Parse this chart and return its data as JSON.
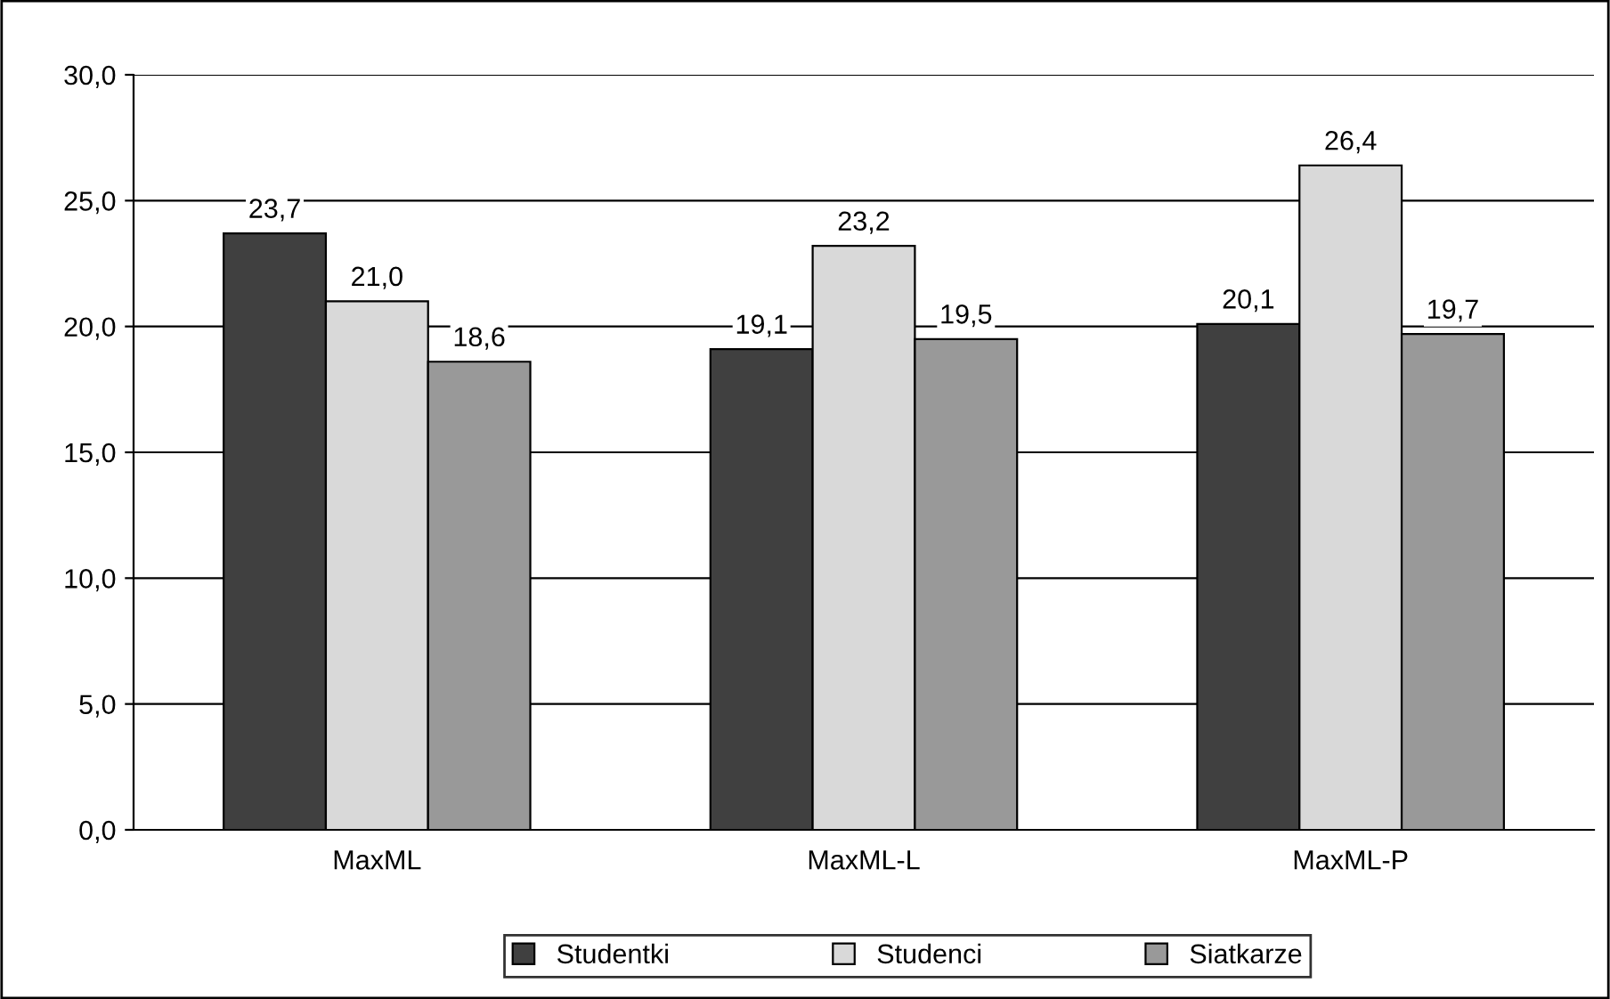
{
  "chart_data": {
    "type": "bar",
    "categories": [
      "MaxML",
      "MaxML-L",
      "MaxML-P"
    ],
    "series": [
      {
        "name": "Studentki",
        "color": "#404040",
        "values": [
          23.7,
          19.1,
          20.1
        ],
        "value_labels": [
          "23,7",
          "19,1",
          "20,1"
        ]
      },
      {
        "name": "Studenci",
        "color": "#d9d9d9",
        "values": [
          21.0,
          23.2,
          26.4
        ],
        "value_labels": [
          "21,0",
          "23,2",
          "26,4"
        ]
      },
      {
        "name": "Siatkarze",
        "color": "#999999",
        "values": [
          18.6,
          19.5,
          19.7
        ],
        "value_labels": [
          "18,6",
          "19,5",
          "19,7"
        ]
      }
    ],
    "ylim": [
      0,
      30
    ],
    "yticks": [
      {
        "value": 0,
        "label": "0,0"
      },
      {
        "value": 5,
        "label": "5,0"
      },
      {
        "value": 10,
        "label": "10,0"
      },
      {
        "value": 15,
        "label": "15,0"
      },
      {
        "value": 20,
        "label": "20,0"
      },
      {
        "value": 25,
        "label": "25,0"
      },
      {
        "value": 30,
        "label": "30,0"
      }
    ],
    "grid": "y",
    "legend": "bottom"
  }
}
